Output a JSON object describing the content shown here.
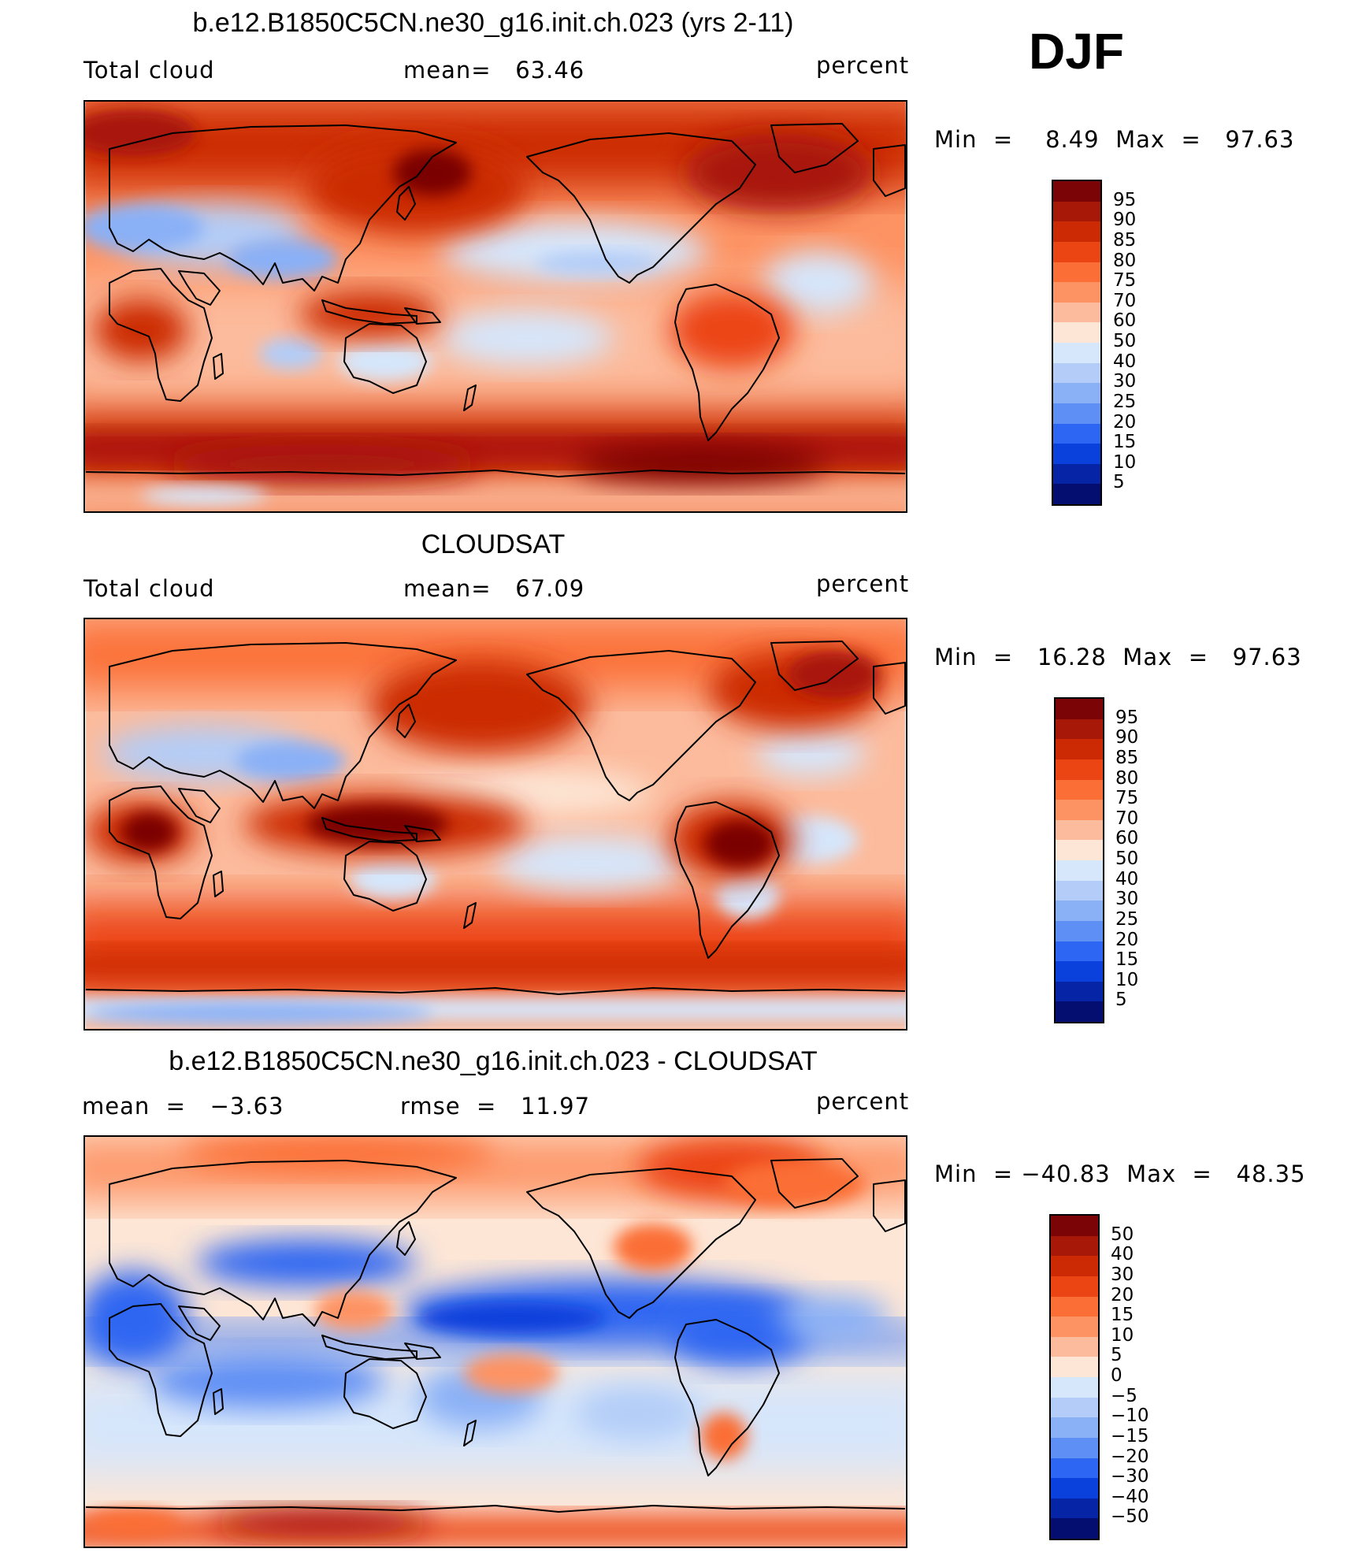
{
  "season": "DJF",
  "colorbars": {
    "abs": {
      "labels": [
        "95",
        "90",
        "85",
        "80",
        "75",
        "70",
        "60",
        "50",
        "40",
        "30",
        "25",
        "20",
        "15",
        "10",
        "5"
      ],
      "colors": [
        "#7a0406",
        "#a81808",
        "#cc2a04",
        "#ec4514",
        "#fb6e35",
        "#fd9363",
        "#fcbb9c",
        "#fde6d6",
        "#d6e6fb",
        "#b3cdf8",
        "#8ab0f6",
        "#5e8ff5",
        "#2d66f2",
        "#0a40db",
        "#0524a6",
        "#040e70"
      ]
    },
    "diff": {
      "labels": [
        "50",
        "40",
        "30",
        "20",
        "15",
        "10",
        "5",
        "0",
        "−5",
        "−10",
        "−15",
        "−20",
        "−30",
        "−40",
        "−50"
      ],
      "colors": [
        "#7a0406",
        "#a81808",
        "#cc2a04",
        "#ec4514",
        "#fb6e35",
        "#fd9363",
        "#fcbb9c",
        "#fde6d6",
        "#d6e6fb",
        "#b3cdf8",
        "#8ab0f6",
        "#5e8ff5",
        "#2d66f2",
        "#0a40db",
        "#0524a6",
        "#040e70"
      ]
    }
  },
  "panels": [
    {
      "title": "b.e12.B1850C5CN.ne30_g16.init.ch.023 (yrs 2-11)",
      "left_label": "Total cloud",
      "center_label": "mean=   63.46",
      "right_label": "percent",
      "minmax": "Min  =    8.49  Max  =   97.63",
      "colorbar": "abs",
      "field": "model"
    },
    {
      "title": "CLOUDSAT",
      "left_label": "Total cloud",
      "center_label": "mean=   67.09",
      "right_label": "percent",
      "minmax": "Min  =   16.28  Max  =   97.63",
      "colorbar": "abs",
      "field": "obs"
    },
    {
      "title": "b.e12.B1850C5CN.ne30_g16.init.ch.023 - CLOUDSAT",
      "left_label": "mean  =   −3.63",
      "center_label": "rmse  =   11.97",
      "right_label": "percent",
      "minmax": "Min  = −40.83  Max  =   48.35",
      "colorbar": "diff",
      "field": "diff"
    }
  ]
}
